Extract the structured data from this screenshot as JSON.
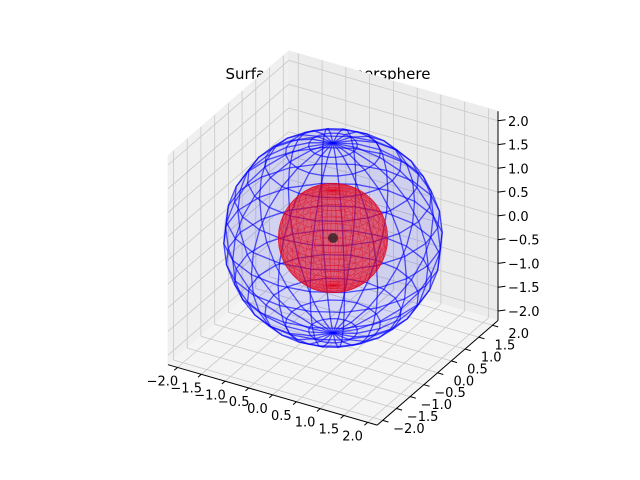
{
  "chart_data": {
    "type": "surface3d",
    "title": "Surface of the hypersphere",
    "xlabel": "",
    "ylabel": "",
    "zlabel": "",
    "xlim": [
      -2.2,
      2.2
    ],
    "ylim": [
      -2.2,
      2.2
    ],
    "zlim": [
      -2.2,
      2.2
    ],
    "xticks": [
      "−2.0",
      "−1.5",
      "−1.0",
      "−0.5",
      "0.0",
      "0.5",
      "1.0",
      "1.5",
      "2.0"
    ],
    "yticks": [
      "−2.0",
      "−1.5",
      "−1.0",
      "−0.5",
      "0.0",
      "0.5",
      "1.0",
      "1.5",
      "2.0"
    ],
    "zticks": [
      "−2.0",
      "−1.5",
      "−1.0",
      "−0.5",
      "0.0",
      "0.5",
      "1.0",
      "1.5",
      "2.0"
    ],
    "grid": true,
    "series": [
      {
        "shape": "sphere",
        "radius": 2.0,
        "center": [
          0,
          0,
          0
        ],
        "color": "#0000ff",
        "style": "wireframe-with-translucent-fill"
      },
      {
        "shape": "sphere",
        "radius": 1.0,
        "center": [
          0,
          0,
          0
        ],
        "color": "#e0001a",
        "style": "dense-wireframe"
      },
      {
        "shape": "point",
        "radius": 0.1,
        "center": [
          0,
          0,
          0
        ],
        "color": "#202020",
        "style": "solid"
      }
    ]
  }
}
